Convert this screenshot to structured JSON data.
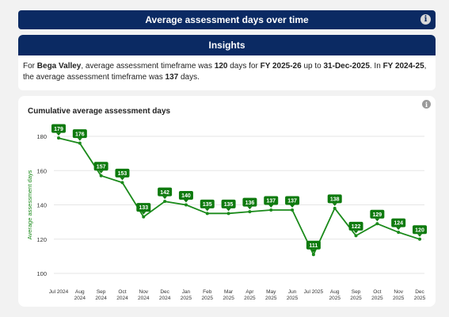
{
  "header": {
    "title": "Average assessment days over time"
  },
  "insights": {
    "title": "Insights",
    "t1": "For ",
    "region": "Bega Valley",
    "t2": ", average assessment timeframe was ",
    "days": "120",
    "t3": " days for ",
    "fy_current": "FY 2025-26",
    "t4": " up to ",
    "date": "31-Dec-2025",
    "t5": ". In ",
    "fy_prev": "FY 2024-25",
    "t6": ", the average assessment timeframe was ",
    "prev_days": "137",
    "t7": " days."
  },
  "icons": {
    "header_info": "info-icon",
    "chart_info": "info-icon"
  },
  "colors": {
    "navy": "#0b2a63",
    "line": "#1a8a1a",
    "label_bg": "#0e7a0e"
  },
  "chart_data": {
    "type": "line",
    "title": "Cumulative average assessment days",
    "xlabel": "",
    "ylabel": "Average assessment days",
    "ylim": [
      100,
      180
    ],
    "yticks": [
      100,
      120,
      140,
      160,
      180
    ],
    "grid": true,
    "categories": [
      "Jul 2024",
      "Aug 2024",
      "Sep 2024",
      "Oct 2024",
      "Nov 2024",
      "Dec 2024",
      "Jan 2025",
      "Feb 2025",
      "Mar 2025",
      "Apr 2025",
      "May 2025",
      "Jun 2025",
      "Jul 2025",
      "Aug 2025",
      "Sep 2025",
      "Oct 2025",
      "Nov 2025",
      "Dec 2025"
    ],
    "series": [
      {
        "values": [
          179,
          176,
          157,
          153,
          133,
          142,
          140,
          135,
          135,
          136,
          137,
          137,
          111,
          138,
          122,
          129,
          124,
          120
        ]
      }
    ]
  }
}
